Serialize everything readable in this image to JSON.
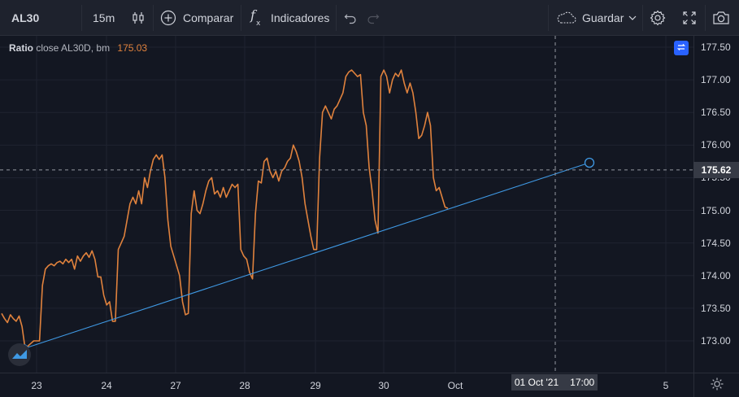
{
  "toolbar": {
    "symbol": "AL30",
    "interval": "15m",
    "compare_label": "Comparar",
    "indicators_label": "Indicadores",
    "save_label": "Guardar"
  },
  "legend": {
    "name": "Ratio",
    "description": "close AL30D, bm",
    "value": "175.03"
  },
  "price_axis": {
    "ticks": [
      "177.50",
      "177.00",
      "176.50",
      "176.00",
      "175.50",
      "175.00",
      "174.50",
      "174.00",
      "173.50",
      "173.00"
    ],
    "crosshair_label": "175.62"
  },
  "time_axis": {
    "ticks": [
      "23",
      "24",
      "27",
      "28",
      "29",
      "30",
      "Oct",
      "5"
    ],
    "crosshair_date": "01 Oct '21",
    "crosshair_time": "17:00"
  },
  "colors": {
    "background": "#131722",
    "series": "#e0823d",
    "trendline": "#3f99e4",
    "accent": "#2962ff"
  },
  "chart_data": {
    "type": "line",
    "series": [
      {
        "name": "Ratio",
        "values": [
          173.42,
          173.34,
          173.28,
          173.4,
          173.34,
          173.3,
          173.38,
          173.22,
          172.9,
          172.92,
          172.96,
          173.0,
          173.0,
          173.0,
          173.85,
          174.1,
          174.15,
          174.18,
          174.15,
          174.2,
          174.22,
          174.18,
          174.25,
          174.2,
          174.25,
          174.1,
          174.3,
          174.22,
          174.3,
          174.35,
          174.28,
          174.38,
          174.25,
          173.98,
          173.98,
          173.7,
          173.55,
          173.6,
          173.3,
          173.3,
          174.4,
          174.5,
          174.6,
          174.85,
          175.1,
          175.2,
          175.1,
          175.3,
          175.1,
          175.5,
          175.35,
          175.6,
          175.78,
          175.85,
          175.78,
          175.85,
          175.5,
          174.85,
          174.45,
          174.3,
          174.15,
          174.0,
          173.6,
          173.4,
          173.42,
          174.95,
          175.3,
          175.0,
          174.95,
          175.1,
          175.3,
          175.45,
          175.5,
          175.25,
          175.3,
          175.2,
          175.35,
          175.2,
          175.3,
          175.4,
          175.35,
          175.4,
          174.4,
          174.3,
          174.25,
          174.05,
          173.95,
          174.95,
          175.45,
          175.42,
          175.75,
          175.8,
          175.6,
          175.5,
          175.6,
          175.45,
          175.6,
          175.65,
          175.75,
          175.8,
          176.0,
          175.9,
          175.75,
          175.5,
          175.1,
          174.85,
          174.6,
          174.4,
          174.4,
          175.8,
          176.5,
          176.6,
          176.5,
          176.4,
          176.55,
          176.6,
          176.7,
          176.8,
          177.05,
          177.12,
          177.15,
          177.1,
          177.05,
          177.08,
          176.5,
          176.3,
          175.65,
          175.3,
          174.85,
          174.65,
          177.05,
          177.15,
          177.05,
          176.8,
          177.0,
          177.1,
          177.05,
          177.15,
          176.95,
          176.8,
          176.95,
          176.8,
          176.5,
          176.1,
          176.15,
          176.3,
          176.5,
          176.3,
          175.5,
          175.3,
          175.35,
          175.2,
          175.05,
          175.03
        ]
      }
    ],
    "x_range_label": [
      "23",
      "5"
    ],
    "ylim": [
      172.78,
      177.7
    ],
    "trendline": {
      "from": 172.88,
      "to": 175.73
    },
    "crosshair_price": 175.62,
    "grid": true
  }
}
